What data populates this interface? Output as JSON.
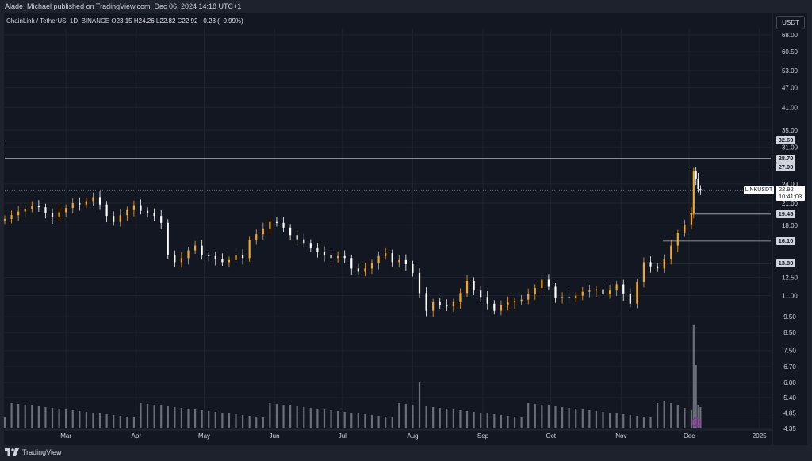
{
  "publisher_line": "Alade_Michael published on TradingView.com, Dec 06, 2024 14:18 UTC+1",
  "header": {
    "symbol": "ChainLink / TetherUS, 1D, BINANCE",
    "o_label": "O",
    "o_value": "23.15",
    "h_label": "H",
    "h_value": "24.26",
    "l_label": "L",
    "l_value": "22.82",
    "c_label": "C",
    "c_value": "22.92",
    "change": "−0.23 (−0.99%)"
  },
  "currency": "USDT",
  "footer_brand": "TradingView",
  "colors": {
    "up": "#f5a623",
    "down": "#ffffff",
    "background": "#131722",
    "frame": "#1e222d",
    "grid": "#1f2430",
    "volume": "#8a8d95",
    "level_line": "#b2b5be",
    "text": "#d1d4dc",
    "indicator": "#9c27b0"
  },
  "price_tag": {
    "symbol": "LINKUSDT",
    "price": "22.92",
    "countdown": "10:41:03"
  },
  "chart_data": {
    "type": "candlestick",
    "y_scale": "log",
    "y_ticks": [
      "68.00",
      "60.50",
      "53.00",
      "47.00",
      "41.00",
      "35.00",
      "31.00",
      "24.00",
      "21.00",
      "18.00",
      "12.50",
      "11.00",
      "9.50",
      "8.50",
      "7.50",
      "6.70",
      "6.00",
      "5.40",
      "4.85",
      "4.35"
    ],
    "x_ticks": [
      "Mar",
      "Apr",
      "May",
      "Jun",
      "Jul",
      "Aug",
      "Sep",
      "Oct",
      "Nov",
      "Dec",
      "2025"
    ],
    "levels": [
      {
        "label": "32.60",
        "value": 32.6
      },
      {
        "label": "28.70",
        "value": 28.7
      },
      {
        "label": "27.00",
        "value": 27.0
      },
      {
        "label": "19.45",
        "value": 19.45
      },
      {
        "label": "16.10",
        "value": 16.1
      },
      {
        "label": "13.80",
        "value": 13.8
      }
    ],
    "last_price": 22.92,
    "closes": [
      [
        "2024-02-03",
        18.8
      ],
      [
        "2024-02-06",
        19.3
      ],
      [
        "2024-02-09",
        19.8
      ],
      [
        "2024-02-12",
        20.2
      ],
      [
        "2024-02-15",
        20.6
      ],
      [
        "2024-02-18",
        20.4
      ],
      [
        "2024-02-21",
        19.6
      ],
      [
        "2024-02-24",
        19.0
      ],
      [
        "2024-02-27",
        19.7
      ],
      [
        "2024-03-01",
        20.3
      ],
      [
        "2024-03-04",
        21.0
      ],
      [
        "2024-03-07",
        20.8
      ],
      [
        "2024-03-10",
        21.3
      ],
      [
        "2024-03-13",
        21.9
      ],
      [
        "2024-03-16",
        20.8
      ],
      [
        "2024-03-19",
        19.2
      ],
      [
        "2024-03-22",
        18.4
      ],
      [
        "2024-03-25",
        19.3
      ],
      [
        "2024-03-28",
        20.0
      ],
      [
        "2024-03-31",
        20.7
      ],
      [
        "2024-04-03",
        19.9
      ],
      [
        "2024-04-06",
        19.6
      ],
      [
        "2024-04-09",
        19.2
      ],
      [
        "2024-04-12",
        18.3
      ],
      [
        "2024-04-15",
        14.6
      ],
      [
        "2024-04-18",
        13.9
      ],
      [
        "2024-04-21",
        14.3
      ],
      [
        "2024-04-24",
        15.1
      ],
      [
        "2024-04-27",
        15.6
      ],
      [
        "2024-04-30",
        14.6
      ],
      [
        "2024-05-03",
        14.5
      ],
      [
        "2024-05-06",
        14.2
      ],
      [
        "2024-05-09",
        13.9
      ],
      [
        "2024-05-12",
        14.1
      ],
      [
        "2024-05-15",
        14.6
      ],
      [
        "2024-05-18",
        14.3
      ],
      [
        "2024-05-21",
        16.2
      ],
      [
        "2024-05-24",
        16.9
      ],
      [
        "2024-05-27",
        17.6
      ],
      [
        "2024-05-30",
        18.4
      ],
      [
        "2024-06-02",
        18.3
      ],
      [
        "2024-06-05",
        17.7
      ],
      [
        "2024-06-08",
        16.8
      ],
      [
        "2024-06-11",
        16.3
      ],
      [
        "2024-06-14",
        15.9
      ],
      [
        "2024-06-17",
        15.4
      ],
      [
        "2024-06-20",
        14.9
      ],
      [
        "2024-06-23",
        14.6
      ],
      [
        "2024-06-26",
        14.3
      ],
      [
        "2024-06-29",
        14.5
      ],
      [
        "2024-07-02",
        14.3
      ],
      [
        "2024-07-05",
        13.3
      ],
      [
        "2024-07-08",
        13.0
      ],
      [
        "2024-07-11",
        13.3
      ],
      [
        "2024-07-14",
        13.8
      ],
      [
        "2024-07-17",
        14.5
      ],
      [
        "2024-07-20",
        14.8
      ],
      [
        "2024-07-23",
        13.9
      ],
      [
        "2024-07-26",
        14.1
      ],
      [
        "2024-07-29",
        13.7
      ],
      [
        "2024-08-01",
        12.9
      ],
      [
        "2024-08-04",
        11.2
      ],
      [
        "2024-08-07",
        9.9
      ],
      [
        "2024-08-10",
        10.5
      ],
      [
        "2024-08-13",
        10.3
      ],
      [
        "2024-08-16",
        10.2
      ],
      [
        "2024-08-19",
        10.5
      ],
      [
        "2024-08-22",
        11.2
      ],
      [
        "2024-08-25",
        12.2
      ],
      [
        "2024-08-28",
        11.4
      ],
      [
        "2024-08-31",
        10.9
      ],
      [
        "2024-09-03",
        10.4
      ],
      [
        "2024-09-06",
        9.9
      ],
      [
        "2024-09-09",
        10.3
      ],
      [
        "2024-09-12",
        10.5
      ],
      [
        "2024-09-15",
        10.6
      ],
      [
        "2024-09-18",
        10.7
      ],
      [
        "2024-09-21",
        11.1
      ],
      [
        "2024-09-24",
        11.6
      ],
      [
        "2024-09-27",
        12.3
      ],
      [
        "2024-09-30",
        11.7
      ],
      [
        "2024-10-03",
        10.8
      ],
      [
        "2024-10-06",
        10.9
      ],
      [
        "2024-10-09",
        10.8
      ],
      [
        "2024-10-12",
        11.0
      ],
      [
        "2024-10-15",
        11.3
      ],
      [
        "2024-10-18",
        11.4
      ],
      [
        "2024-10-21",
        11.5
      ],
      [
        "2024-10-24",
        11.1
      ],
      [
        "2024-10-27",
        11.4
      ],
      [
        "2024-10-30",
        11.9
      ],
      [
        "2024-11-02",
        11.1
      ],
      [
        "2024-11-05",
        10.4
      ],
      [
        "2024-11-08",
        12.1
      ],
      [
        "2024-11-11",
        13.9
      ],
      [
        "2024-11-14",
        13.5
      ],
      [
        "2024-11-17",
        13.3
      ],
      [
        "2024-11-20",
        14.2
      ],
      [
        "2024-11-23",
        15.6
      ],
      [
        "2024-11-26",
        17.0
      ],
      [
        "2024-11-29",
        18.1
      ],
      [
        "2024-12-02",
        19.6
      ],
      [
        "2024-12-03",
        26.2
      ],
      [
        "2024-12-04",
        24.9
      ],
      [
        "2024-12-05",
        23.2
      ],
      [
        "2024-12-06",
        22.92
      ]
    ]
  }
}
